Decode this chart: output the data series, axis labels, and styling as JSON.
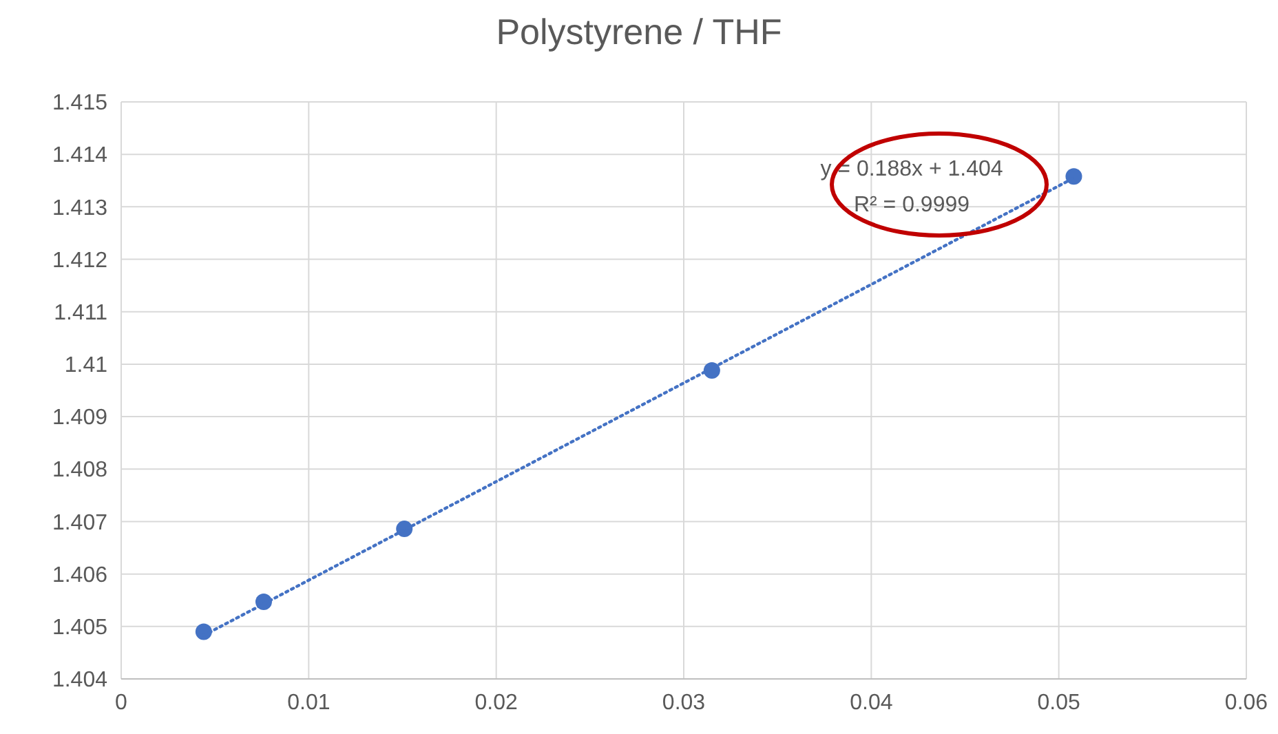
{
  "chart_data": {
    "type": "scatter",
    "title": "Polystyrene / THF",
    "xlim": [
      0,
      0.06
    ],
    "xticks": [
      0,
      0.01,
      0.02,
      0.03,
      0.04,
      0.05,
      0.06
    ],
    "ylim": [
      1.404,
      1.415
    ],
    "yticks": [
      1.404,
      1.405,
      1.406,
      1.407,
      1.408,
      1.409,
      1.41,
      1.411,
      1.412,
      1.413,
      1.414,
      1.415
    ],
    "grid": true,
    "series": [
      {
        "color": "#4472c4",
        "marker": "circle",
        "x": [
          0.0044,
          0.0076,
          0.0151,
          0.0315,
          0.0508
        ],
        "values": [
          1.4049,
          1.40547,
          1.40686,
          1.40988,
          1.41358
        ]
      },
      {
        "type": "line",
        "color": "#4472c4",
        "marker": "none",
        "line_style": "dotted",
        "x": [
          0.0044,
          0.0508
        ],
        "values": [
          1.40483,
          1.41355
        ]
      }
    ],
    "annotations": [
      "y = 0.188x + 1.404",
      "R² = 0.9999"
    ]
  }
}
